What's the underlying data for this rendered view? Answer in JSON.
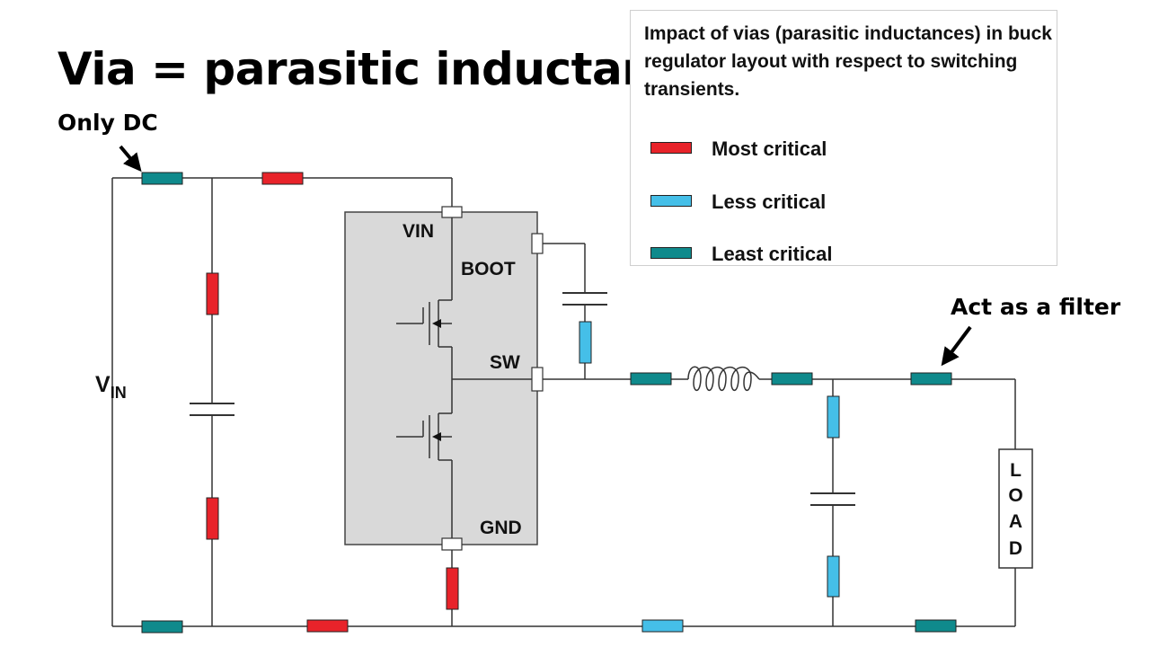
{
  "title": "Via = parasitic inductance",
  "callouts": {
    "only_dc": "Only DC",
    "act_as_filter": "Act as a filter"
  },
  "legend": {
    "description": "Impact of vias (parasitic inductances) in buck regulator layout with respect to switching transients.",
    "items": [
      {
        "label": "Most critical",
        "color": "#e8232a"
      },
      {
        "label": "Less critical",
        "color": "#45bfe8"
      },
      {
        "label": "Least critical",
        "color": "#0f8a8c"
      }
    ]
  },
  "circuit": {
    "vin_label_main": "V",
    "vin_label_sub": "IN",
    "ic_pins": {
      "vin": "VIN",
      "boot": "BOOT",
      "sw": "SW",
      "gnd": "GND"
    },
    "load_letters": [
      "L",
      "O",
      "A",
      "D"
    ],
    "colors": {
      "ic_body": "#d9d9d9",
      "wire": "#333333"
    }
  }
}
